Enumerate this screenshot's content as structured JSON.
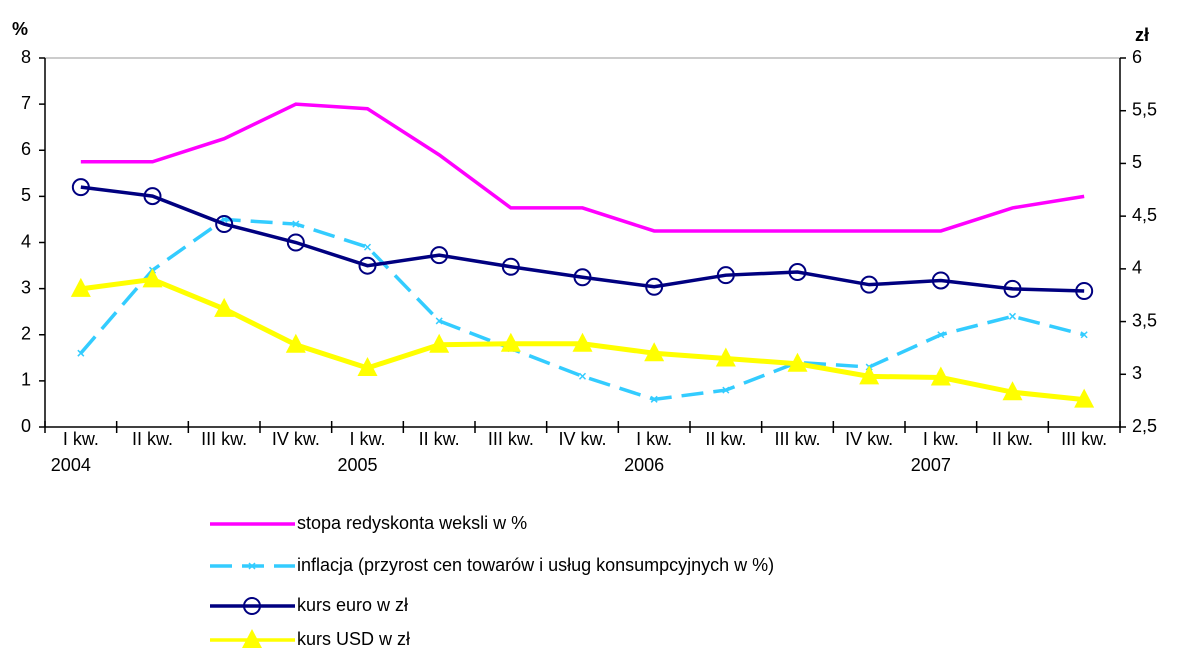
{
  "chart_data": {
    "type": "line",
    "y_label": "%",
    "y2_label": "zł",
    "categories": [
      "I kw.",
      "II kw.",
      "III kw.",
      "IV kw.",
      "I kw.",
      "II kw.",
      "III kw.",
      "IV kw.",
      "I kw.",
      "II kw.",
      "III kw.",
      "IV kw.",
      "I kw.",
      "II kw.",
      "III kw."
    ],
    "categories_year": [
      "2004",
      null,
      null,
      null,
      "2005",
      null,
      null,
      null,
      "2006",
      null,
      null,
      null,
      "2007",
      null,
      null
    ],
    "ylim": [
      0,
      8
    ],
    "yticks": [
      0,
      1,
      2,
      3,
      4,
      5,
      6,
      7,
      8
    ],
    "y2lim": [
      2.5,
      6
    ],
    "y2ticks": [
      {
        "value": 2.5,
        "label": "2,5"
      },
      3,
      {
        "value": 3.5,
        "label": "3,5"
      },
      4,
      {
        "value": 4.5,
        "label": "4,5"
      },
      5,
      {
        "value": 5.5,
        "label": "5,5"
      },
      6
    ],
    "series": [
      {
        "name": "stopa redyskonta weksli w %",
        "color": "#ff00ff",
        "marker": "none",
        "dash": false,
        "values": [
          5.75,
          5.75,
          6.25,
          7,
          6.9,
          5.9,
          4.75,
          4.75,
          4.25,
          4.25,
          4.25,
          4.25,
          4.25,
          4.75,
          5.0
        ]
      },
      {
        "name": "inflacja (przyrost cen towarów i usług konsumpcyjnych w %)",
        "color": "#33ccff",
        "marker": "x",
        "dash": true,
        "values": [
          1.6,
          3.4,
          4.5,
          4.4,
          3.9,
          2.3,
          1.7,
          1.1,
          0.6,
          0.8,
          1.4,
          1.3,
          2.0,
          2.4,
          2.0
        ]
      },
      {
        "name": "kurs euro w zł",
        "color": "#000080",
        "marker": "circle",
        "dash": false,
        "axis": "y2",
        "values": [
          4.775,
          4.69,
          4.425,
          4.25,
          4.03,
          4.13,
          4.02,
          3.92,
          3.83,
          3.94,
          3.97,
          3.85,
          3.89,
          3.81,
          3.79
        ]
      },
      {
        "name": "kurs USD w zł",
        "color": "#ffff00",
        "marker": "triangle",
        "dash": false,
        "axis": "y2",
        "values": [
          3.81,
          3.9,
          3.62,
          3.28,
          3.06,
          3.28,
          3.29,
          3.29,
          3.2,
          3.15,
          3.1,
          2.98,
          2.97,
          2.83,
          2.76
        ]
      }
    ]
  }
}
